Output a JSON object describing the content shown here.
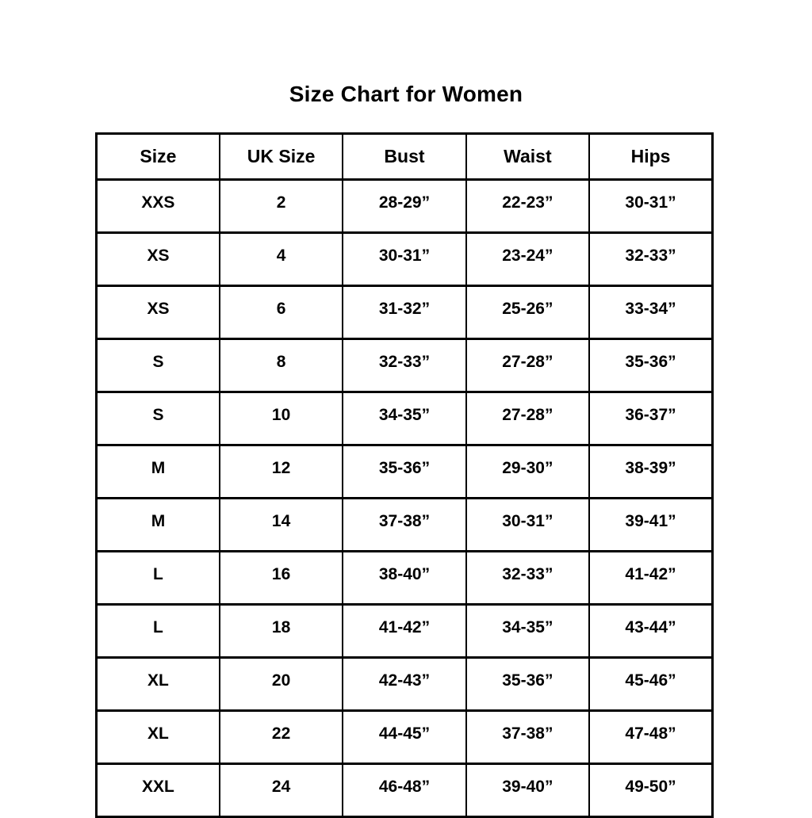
{
  "chart_data": {
    "type": "table",
    "title": "Size Chart for Women",
    "columns": [
      "Size",
      "UK Size",
      "Bust",
      "Waist",
      "Hips"
    ],
    "rows": [
      [
        "XXS",
        "2",
        "28-29”",
        "22-23”",
        "30-31”"
      ],
      [
        "XS",
        "4",
        "30-31”",
        "23-24”",
        "32-33”"
      ],
      [
        "XS",
        "6",
        "31-32”",
        "25-26”",
        "33-34”"
      ],
      [
        "S",
        "8",
        "32-33”",
        "27-28”",
        "35-36”"
      ],
      [
        "S",
        "10",
        "34-35”",
        "27-28”",
        "36-37”"
      ],
      [
        "M",
        "12",
        "35-36”",
        "29-30”",
        "38-39”"
      ],
      [
        "M",
        "14",
        "37-38”",
        "30-31”",
        "39-41”"
      ],
      [
        "L",
        "16",
        "38-40”",
        "32-33”",
        "41-42”"
      ],
      [
        "L",
        "18",
        "41-42”",
        "34-35”",
        "43-44”"
      ],
      [
        "XL",
        "20",
        "42-43”",
        "35-36”",
        "45-46”"
      ],
      [
        "XL",
        "22",
        "44-45”",
        "37-38”",
        "47-48”"
      ],
      [
        "XXL",
        "24",
        "46-48”",
        "39-40”",
        "49-50”"
      ]
    ],
    "layout": {
      "grid": "full-borders",
      "header_position": "top"
    }
  },
  "colors": {
    "text": "#000000",
    "border": "#000000",
    "background": "#ffffff"
  }
}
